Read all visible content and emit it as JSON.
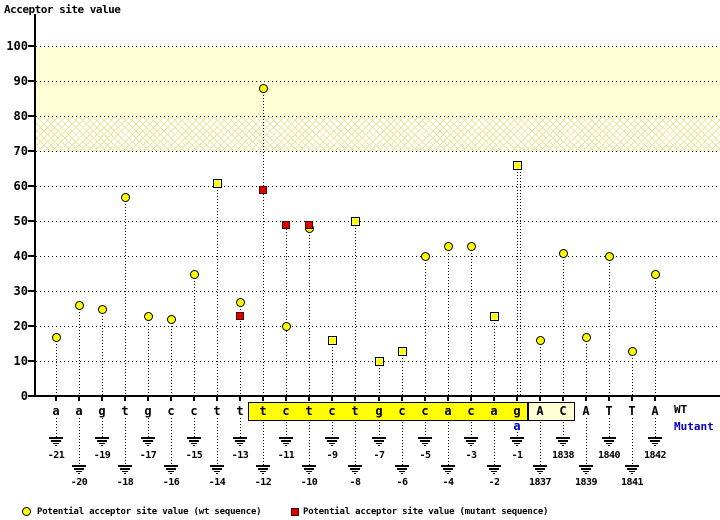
{
  "title": "Acceptor site value",
  "right_labels": {
    "wt": "WT",
    "mutant": "Mutant"
  },
  "legend": [
    {
      "marker": "circle",
      "color": "#ffff00",
      "label": "Potential acceptor site value (wt sequence)"
    },
    {
      "marker": "square",
      "color": "#dd0000",
      "label": "Potential acceptor site value (mutant sequence)"
    }
  ],
  "colors": {
    "wt_marker": "#ffff00",
    "mutant_marker": "#dd0000",
    "score_band": "#ffffd6",
    "acceptor_region_box": "#ffff00",
    "exon_box": "#ffffd6",
    "mutant_text": "#0000cc"
  },
  "chart_data": {
    "type": "scatter",
    "title": "Acceptor site value",
    "ylabel": "Acceptor site value",
    "ylim": [
      0,
      100
    ],
    "y_ticks": [
      0,
      10,
      20,
      30,
      40,
      50,
      60,
      70,
      80,
      90,
      100
    ],
    "grid": "dotted horizontal lines at every 10",
    "bands": [
      {
        "range": [
          80,
          100
        ],
        "style": "solid"
      },
      {
        "range": [
          70,
          80
        ],
        "style": "hatched"
      }
    ],
    "legend_position": "bottom",
    "series_info": [
      {
        "name": "Potential acceptor site value (wt sequence)",
        "marker": "yellow circle"
      },
      {
        "name": "Potential acceptor site value (mutant sequence)",
        "marker": "red square"
      }
    ],
    "sites": [
      {
        "base": "a",
        "pos": "-21",
        "wt": 17,
        "marker": "circle"
      },
      {
        "base": "a",
        "pos": "-20",
        "wt": 26,
        "marker": "circle"
      },
      {
        "base": "g",
        "pos": "-19",
        "wt": 25,
        "marker": "circle"
      },
      {
        "base": "t",
        "pos": "-18",
        "wt": 57,
        "marker": "circle"
      },
      {
        "base": "g",
        "pos": "-17",
        "wt": 23,
        "marker": "circle"
      },
      {
        "base": "c",
        "pos": "-16",
        "wt": 22,
        "marker": "circle"
      },
      {
        "base": "c",
        "pos": "-15",
        "wt": 35,
        "marker": "circle"
      },
      {
        "base": "t",
        "pos": "-14",
        "wt": 61,
        "marker": "square"
      },
      {
        "base": "t",
        "pos": "-13",
        "wt": 27,
        "marker": "circle",
        "mutant": 23
      },
      {
        "base": "t",
        "pos": "-12",
        "wt": 88,
        "marker": "circle",
        "mutant": 59,
        "region": "acceptor"
      },
      {
        "base": "c",
        "pos": "-11",
        "wt": 20,
        "marker": "circle",
        "mutant": 49,
        "region": "acceptor"
      },
      {
        "base": "t",
        "pos": "-10",
        "wt": 48,
        "marker": "circle",
        "mutant": 49,
        "region": "acceptor"
      },
      {
        "base": "c",
        "pos": "-9",
        "wt": 16,
        "marker": "square",
        "region": "acceptor"
      },
      {
        "base": "t",
        "pos": "-8",
        "wt": 50,
        "marker": "square",
        "region": "acceptor"
      },
      {
        "base": "g",
        "pos": "-7",
        "wt": 10,
        "marker": "square",
        "region": "acceptor"
      },
      {
        "base": "c",
        "pos": "-6",
        "wt": 13,
        "marker": "square",
        "region": "acceptor"
      },
      {
        "base": "c",
        "pos": "-5",
        "wt": 40,
        "marker": "circle",
        "region": "acceptor"
      },
      {
        "base": "a",
        "pos": "-4",
        "wt": 43,
        "marker": "circle",
        "region": "acceptor"
      },
      {
        "base": "c",
        "pos": "-3",
        "wt": 43,
        "marker": "circle",
        "region": "acceptor"
      },
      {
        "base": "a",
        "pos": "-2",
        "wt": 23,
        "marker": "square",
        "region": "acceptor"
      },
      {
        "base": "g",
        "pos": "-1",
        "wt": 66,
        "marker": "square",
        "region": "acceptor",
        "mutant_base": "a",
        "double_stem": true
      },
      {
        "base": "A",
        "pos": "1837",
        "wt": 16,
        "marker": "circle",
        "region": "exon"
      },
      {
        "base": "C",
        "pos": "1838",
        "wt": 41,
        "marker": "circle",
        "region": "exon"
      },
      {
        "base": "A",
        "pos": "1839",
        "wt": 17,
        "marker": "circle"
      },
      {
        "base": "T",
        "pos": "1840",
        "wt": 40,
        "marker": "circle"
      },
      {
        "base": "T",
        "pos": "1841",
        "wt": 13,
        "marker": "circle"
      },
      {
        "base": "A",
        "pos": "1842",
        "wt": 35,
        "marker": "circle"
      }
    ]
  }
}
